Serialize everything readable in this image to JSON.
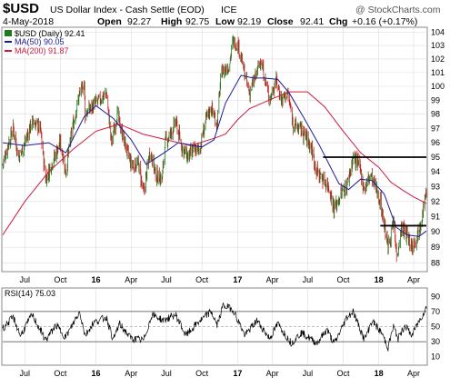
{
  "header": {
    "symbol": "$USD",
    "name": "US Dollar Index - Cash Settle (EOD)",
    "exchange": "ICE",
    "watermark": "@ StockCharts.com",
    "date": "4-May-2018",
    "open_label": "Open",
    "open": "92.27",
    "high_label": "High",
    "high": "92.75",
    "low_label": "Low",
    "low": "92.19",
    "close_label": "Close",
    "close": "92.41",
    "chg_label": "Chg",
    "chg": "+0.16 (+0.17%)"
  },
  "legend": {
    "price": "$USD (Daily) 92.41",
    "ma50": "MA(50) 90.05",
    "ma200": "MA(200) 91.87",
    "rsi": "RSI(14) 75.03"
  },
  "colors": {
    "up": "#1f7a1f",
    "down": "#cc2222",
    "ma50": "#1a1a99",
    "ma200": "#cc1a3d",
    "grid": "#dddddd",
    "resistance": "#000000"
  },
  "chart_data": [
    {
      "type": "candlestick",
      "scale": "log",
      "ylim": [
        87.5,
        104.3
      ],
      "y_ticks": [
        88,
        89,
        90,
        91,
        92,
        93,
        94,
        95,
        96,
        97,
        98,
        99,
        100,
        101,
        102,
        103,
        104
      ],
      "x_ticks": [
        "Jul",
        "Oct",
        "16",
        "Apr",
        "Jul",
        "Oct",
        "17",
        "Apr",
        "Jul",
        "Oct",
        "18",
        "Apr"
      ],
      "x_tick_dates": [
        "2015-07-01",
        "2015-10-01",
        "2016-01-01",
        "2016-04-01",
        "2016-07-01",
        "2016-10-01",
        "2017-01-01",
        "2017-04-01",
        "2017-07-01",
        "2017-10-01",
        "2018-01-01",
        "2018-04-01"
      ],
      "date_range": [
        "2015-05-05",
        "2018-05-04"
      ],
      "grid": true,
      "series": [
        {
          "name": "$USD (Daily)",
          "points": [
            [
              "2015-05-05",
              94.5
            ],
            [
              "2015-05-20",
              96.0
            ],
            [
              "2015-06-01",
              97.0
            ],
            [
              "2015-06-15",
              95.0
            ],
            [
              "2015-07-01",
              96.0
            ],
            [
              "2015-07-20",
              97.5
            ],
            [
              "2015-08-10",
              97.0
            ],
            [
              "2015-08-24",
              93.5
            ],
            [
              "2015-09-15",
              95.0
            ],
            [
              "2015-10-01",
              96.0
            ],
            [
              "2015-10-15",
              94.0
            ],
            [
              "2015-11-01",
              97.0
            ],
            [
              "2015-11-20",
              99.5
            ],
            [
              "2015-12-02",
              100.2
            ],
            [
              "2015-12-04",
              98.0
            ],
            [
              "2015-12-20",
              98.5
            ],
            [
              "2016-01-10",
              99.0
            ],
            [
              "2016-01-28",
              99.5
            ],
            [
              "2016-02-10",
              96.0
            ],
            [
              "2016-02-25",
              98.0
            ],
            [
              "2016-03-15",
              96.0
            ],
            [
              "2016-04-01",
              94.5
            ],
            [
              "2016-04-20",
              94.5
            ],
            [
              "2016-05-03",
              92.5
            ],
            [
              "2016-05-20",
              95.5
            ],
            [
              "2016-06-03",
              93.8
            ],
            [
              "2016-06-20",
              93.5
            ],
            [
              "2016-06-27",
              96.0
            ],
            [
              "2016-07-10",
              96.5
            ],
            [
              "2016-07-25",
              97.5
            ],
            [
              "2016-08-10",
              95.7
            ],
            [
              "2016-08-25",
              95.0
            ],
            [
              "2016-09-10",
              95.5
            ],
            [
              "2016-09-25",
              95.5
            ],
            [
              "2016-10-10",
              97.5
            ],
            [
              "2016-10-25",
              98.5
            ],
            [
              "2016-11-09",
              97.3
            ],
            [
              "2016-11-20",
              101.0
            ],
            [
              "2016-12-10",
              101.5
            ],
            [
              "2016-12-20",
              103.3
            ],
            [
              "2017-01-03",
              103.0
            ],
            [
              "2017-01-20",
              100.8
            ],
            [
              "2017-02-01",
              99.5
            ],
            [
              "2017-02-20",
              101.0
            ],
            [
              "2017-03-01",
              102.0
            ],
            [
              "2017-03-25",
              99.0
            ],
            [
              "2017-04-10",
              100.5
            ],
            [
              "2017-04-25",
              99.0
            ],
            [
              "2017-05-10",
              99.5
            ],
            [
              "2017-05-25",
              97.3
            ],
            [
              "2017-06-10",
              97.0
            ],
            [
              "2017-06-25",
              96.5
            ],
            [
              "2017-07-10",
              95.7
            ],
            [
              "2017-07-25",
              94.0
            ],
            [
              "2017-08-10",
              93.5
            ],
            [
              "2017-08-25",
              93.0
            ],
            [
              "2017-09-08",
              91.5
            ],
            [
              "2017-09-25",
              92.5
            ],
            [
              "2017-10-10",
              93.0
            ],
            [
              "2017-10-27",
              95.0
            ],
            [
              "2017-11-10",
              94.5
            ],
            [
              "2017-11-25",
              92.8
            ],
            [
              "2017-12-10",
              93.8
            ],
            [
              "2017-12-20",
              93.2
            ],
            [
              "2018-01-05",
              92.0
            ],
            [
              "2018-01-15",
              90.5
            ],
            [
              "2018-01-25",
              89.0
            ],
            [
              "2018-02-08",
              90.5
            ],
            [
              "2018-02-16",
              88.5
            ],
            [
              "2018-03-01",
              90.3
            ],
            [
              "2018-03-15",
              89.8
            ],
            [
              "2018-03-27",
              89.0
            ],
            [
              "2018-04-10",
              89.8
            ],
            [
              "2018-04-20",
              90.8
            ],
            [
              "2018-04-27",
              91.8
            ],
            [
              "2018-05-04",
              92.41
            ]
          ]
        },
        {
          "name": "MA(50)",
          "points": [
            [
              "2015-05-05",
              96.0
            ],
            [
              "2015-07-01",
              95.8
            ],
            [
              "2015-09-01",
              96.0
            ],
            [
              "2015-10-15",
              95.3
            ],
            [
              "2015-12-01",
              97.8
            ],
            [
              "2016-01-01",
              98.6
            ],
            [
              "2016-02-15",
              97.7
            ],
            [
              "2016-04-01",
              96.2
            ],
            [
              "2016-05-10",
              94.5
            ],
            [
              "2016-07-01",
              95.4
            ],
            [
              "2016-08-01",
              96.0
            ],
            [
              "2016-10-01",
              95.7
            ],
            [
              "2016-11-01",
              96.2
            ],
            [
              "2016-12-01",
              98.8
            ],
            [
              "2017-01-10",
              100.8
            ],
            [
              "2017-02-10",
              100.6
            ],
            [
              "2017-03-10",
              100.6
            ],
            [
              "2017-04-15",
              100.5
            ],
            [
              "2017-05-15",
              99.5
            ],
            [
              "2017-06-20",
              97.8
            ],
            [
              "2017-08-01",
              95.8
            ],
            [
              "2017-09-20",
              93.2
            ],
            [
              "2017-10-15",
              92.8
            ],
            [
              "2017-11-15",
              93.5
            ],
            [
              "2017-12-15",
              93.4
            ],
            [
              "2018-01-15",
              92.5
            ],
            [
              "2018-02-15",
              90.3
            ],
            [
              "2018-03-15",
              89.8
            ],
            [
              "2018-04-15",
              89.7
            ],
            [
              "2018-05-04",
              90.05
            ]
          ]
        },
        {
          "name": "MA(200)",
          "points": [
            [
              "2015-05-05",
              89.8
            ],
            [
              "2015-07-01",
              92.0
            ],
            [
              "2015-09-01",
              94.0
            ],
            [
              "2015-11-01",
              95.5
            ],
            [
              "2016-01-01",
              96.8
            ],
            [
              "2016-03-01",
              97.3
            ],
            [
              "2016-05-01",
              96.6
            ],
            [
              "2016-07-01",
              96.2
            ],
            [
              "2016-09-01",
              95.8
            ],
            [
              "2016-11-01",
              96.3
            ],
            [
              "2016-12-01",
              96.6
            ],
            [
              "2017-01-01",
              97.6
            ],
            [
              "2017-02-01",
              98.4
            ],
            [
              "2017-04-01",
              99.1
            ],
            [
              "2017-05-15",
              99.6
            ],
            [
              "2017-07-01",
              99.6
            ],
            [
              "2017-08-15",
              98.5
            ],
            [
              "2017-10-01",
              96.8
            ],
            [
              "2017-11-15",
              95.3
            ],
            [
              "2018-01-01",
              94.3
            ],
            [
              "2018-02-01",
              93.3
            ],
            [
              "2018-03-01",
              92.8
            ],
            [
              "2018-04-01",
              92.3
            ],
            [
              "2018-05-04",
              91.87
            ]
          ]
        }
      ],
      "horizontal_lines": [
        {
          "y": 95.0,
          "from": "2017-08-10",
          "to": "2018-05-04"
        },
        {
          "y": 90.4,
          "from": "2018-01-05",
          "to": "2018-05-04"
        }
      ]
    },
    {
      "type": "line",
      "ylim": [
        0,
        100
      ],
      "y_ticks": [
        10,
        30,
        50,
        70,
        90
      ],
      "reference_lines": [
        30,
        50,
        70
      ],
      "x_ticks": [
        "Jul",
        "Oct",
        "16",
        "Apr",
        "Jul",
        "Oct",
        "17",
        "Apr",
        "Jul",
        "Oct",
        "18",
        "Apr"
      ],
      "series": [
        {
          "name": "RSI(14)",
          "points": [
            [
              "2015-05-05",
              48
            ],
            [
              "2015-06-01",
              62
            ],
            [
              "2015-06-20",
              38
            ],
            [
              "2015-07-20",
              66
            ],
            [
              "2015-08-24",
              32
            ],
            [
              "2015-09-20",
              52
            ],
            [
              "2015-10-15",
              36
            ],
            [
              "2015-11-20",
              70
            ],
            [
              "2015-12-04",
              38
            ],
            [
              "2015-12-25",
              55
            ],
            [
              "2016-01-28",
              62
            ],
            [
              "2016-02-15",
              32
            ],
            [
              "2016-03-01",
              54
            ],
            [
              "2016-04-01",
              34
            ],
            [
              "2016-05-03",
              32
            ],
            [
              "2016-05-25",
              66
            ],
            [
              "2016-06-24",
              58
            ],
            [
              "2016-07-25",
              66
            ],
            [
              "2016-08-20",
              38
            ],
            [
              "2016-09-20",
              55
            ],
            [
              "2016-10-25",
              70
            ],
            [
              "2016-11-09",
              52
            ],
            [
              "2016-11-25",
              78
            ],
            [
              "2016-12-20",
              73
            ],
            [
              "2017-01-20",
              38
            ],
            [
              "2017-02-20",
              58
            ],
            [
              "2017-03-25",
              34
            ],
            [
              "2017-04-15",
              54
            ],
            [
              "2017-05-20",
              28
            ],
            [
              "2017-06-15",
              42
            ],
            [
              "2017-07-25",
              28
            ],
            [
              "2017-08-20",
              46
            ],
            [
              "2017-09-08",
              27
            ],
            [
              "2017-10-10",
              62
            ],
            [
              "2017-10-27",
              70
            ],
            [
              "2017-11-25",
              32
            ],
            [
              "2017-12-15",
              58
            ],
            [
              "2018-01-10",
              40
            ],
            [
              "2018-01-25",
              22
            ],
            [
              "2018-02-08",
              50
            ],
            [
              "2018-02-20",
              34
            ],
            [
              "2018-03-10",
              52
            ],
            [
              "2018-03-27",
              38
            ],
            [
              "2018-04-20",
              62
            ],
            [
              "2018-05-04",
              75
            ]
          ]
        }
      ]
    }
  ]
}
